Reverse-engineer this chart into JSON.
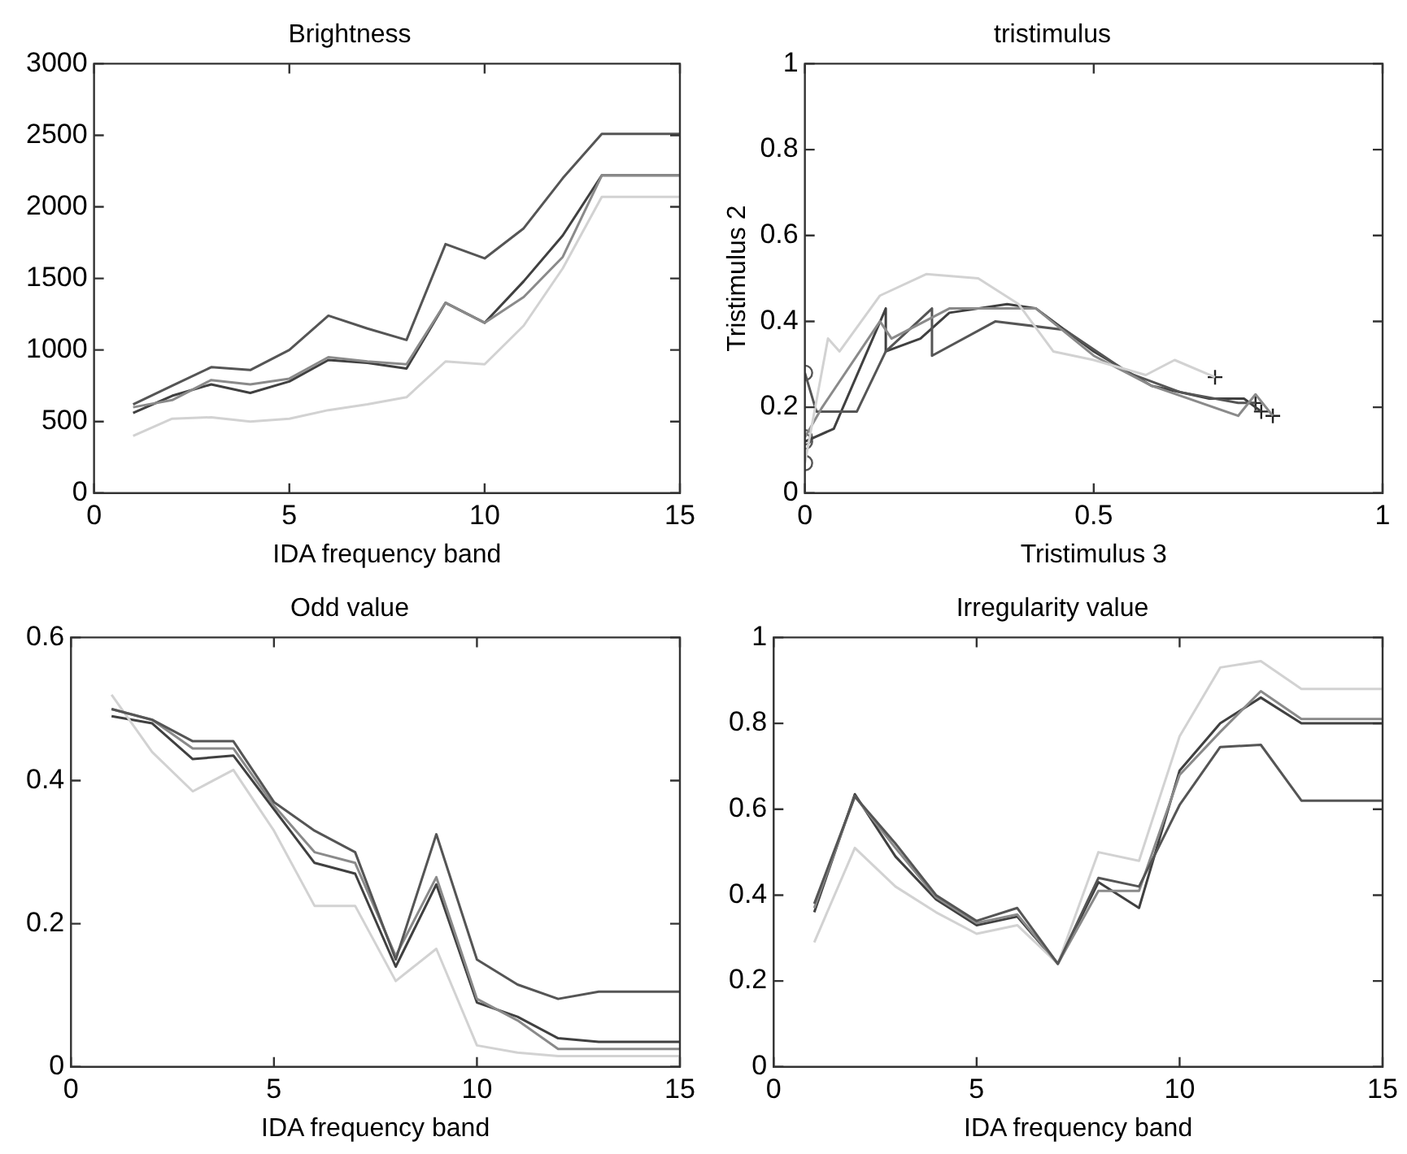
{
  "chart_data": [
    {
      "type": "line",
      "title": "Brightness",
      "xlabel": "IDA frequency band",
      "x": [
        1,
        2,
        3,
        4,
        5,
        6,
        7,
        8,
        9,
        10,
        11,
        12,
        13,
        14,
        15
      ],
      "xlim": [
        0,
        15
      ],
      "xticks": [
        0,
        5,
        10,
        15
      ],
      "ylim": [
        0,
        3000
      ],
      "yticks": [
        0,
        500,
        1000,
        1500,
        2000,
        2500,
        3000
      ],
      "grid": false,
      "legend": false,
      "line_style": "solid",
      "series": [
        {
          "color": "#555555",
          "values": [
            620,
            750,
            880,
            860,
            1000,
            1240,
            1150,
            1070,
            1740,
            1640,
            1850,
            2200,
            2510,
            2510,
            2510
          ]
        },
        {
          "color": "#8a8a8a",
          "values": [
            600,
            650,
            790,
            760,
            800,
            950,
            920,
            900,
            1330,
            1190,
            1370,
            1650,
            2220,
            2220,
            2220
          ]
        },
        {
          "color": "#d2d2d2",
          "values": [
            400,
            520,
            530,
            500,
            520,
            580,
            620,
            670,
            920,
            900,
            1170,
            1570,
            2070,
            2070,
            2070
          ]
        },
        {
          "color": "#404040",
          "values": [
            560,
            680,
            760,
            700,
            780,
            930,
            910,
            870,
            1330,
            1190,
            1480,
            1800,
            2220,
            2220,
            2220
          ]
        }
      ]
    },
    {
      "type": "line",
      "title": "tristimulus",
      "xlabel": "Tristimulus 3",
      "ylabel": "Tristimulus 2",
      "xlim": [
        0,
        1
      ],
      "xticks": [
        0,
        0.5,
        1
      ],
      "ylim": [
        0,
        1
      ],
      "yticks": [
        0,
        0.2,
        0.4,
        0.6,
        0.8,
        1
      ],
      "grid": false,
      "legend": false,
      "line_style": "solid",
      "series": [
        {
          "color": "#d2d2d2",
          "x": [
            0,
            0.04,
            0.06,
            0.13,
            0.21,
            0.3,
            0.37,
            0.43,
            0.5,
            0.59,
            0.64,
            0.71
          ],
          "values": [
            0.07,
            0.36,
            0.33,
            0.46,
            0.51,
            0.5,
            0.44,
            0.33,
            0.31,
            0.275,
            0.31,
            0.27
          ]
        },
        {
          "color": "#8a8a8a",
          "x": [
            0,
            0.03,
            0.13,
            0.15,
            0.25,
            0.4,
            0.5,
            0.6,
            0.75,
            0.78,
            0.81
          ],
          "values": [
            0.13,
            0.2,
            0.4,
            0.36,
            0.43,
            0.43,
            0.32,
            0.25,
            0.18,
            0.23,
            0.18
          ]
        },
        {
          "color": "#555555",
          "x": [
            0,
            0.02,
            0.09,
            0.14,
            0.22,
            0.22,
            0.33,
            0.45,
            0.56,
            0.65,
            0.75,
            0.78
          ],
          "values": [
            0.28,
            0.19,
            0.19,
            0.33,
            0.43,
            0.32,
            0.4,
            0.38,
            0.28,
            0.235,
            0.21,
            0.21
          ]
        },
        {
          "color": "#404040",
          "x": [
            0,
            0.05,
            0.14,
            0.14,
            0.2,
            0.25,
            0.35,
            0.4,
            0.5,
            0.6,
            0.7,
            0.76,
            0.79
          ],
          "values": [
            0.12,
            0.15,
            0.43,
            0.33,
            0.36,
            0.42,
            0.44,
            0.43,
            0.33,
            0.25,
            0.22,
            0.22,
            0.19
          ]
        },
        {
          "type": "scatter",
          "marker": "circle",
          "color": "#555555",
          "x": [
            0,
            0,
            0,
            0
          ],
          "values": [
            0.07,
            0.13,
            0.28,
            0.12
          ]
        },
        {
          "type": "scatter",
          "marker": "cross",
          "color": "#222222",
          "x": [
            0.71,
            0.81,
            0.78,
            0.79
          ],
          "values": [
            0.27,
            0.18,
            0.21,
            0.19
          ]
        }
      ]
    },
    {
      "type": "line",
      "title": "Odd value",
      "xlabel": "IDA frequency band",
      "x": [
        1,
        2,
        3,
        4,
        5,
        6,
        7,
        8,
        9,
        10,
        11,
        12,
        13,
        14,
        15
      ],
      "xlim": [
        0,
        15
      ],
      "xticks": [
        0,
        5,
        10,
        15
      ],
      "ylim": [
        0,
        0.6
      ],
      "yticks": [
        0,
        0.2,
        0.4,
        0.6
      ],
      "grid": false,
      "legend": false,
      "line_style": "solid",
      "series": [
        {
          "color": "#555555",
          "values": [
            0.5,
            0.485,
            0.455,
            0.455,
            0.37,
            0.33,
            0.3,
            0.15,
            0.325,
            0.15,
            0.115,
            0.095,
            0.105,
            0.105,
            0.105
          ]
        },
        {
          "color": "#8a8a8a",
          "values": [
            0.5,
            0.485,
            0.445,
            0.445,
            0.365,
            0.3,
            0.285,
            0.155,
            0.265,
            0.095,
            0.065,
            0.025,
            0.025,
            0.025,
            0.025
          ]
        },
        {
          "color": "#d2d2d2",
          "values": [
            0.52,
            0.44,
            0.385,
            0.415,
            0.33,
            0.225,
            0.225,
            0.12,
            0.165,
            0.03,
            0.02,
            0.015,
            0.015,
            0.015,
            0.015
          ]
        },
        {
          "color": "#404040",
          "values": [
            0.49,
            0.48,
            0.43,
            0.435,
            0.36,
            0.285,
            0.27,
            0.14,
            0.255,
            0.09,
            0.07,
            0.04,
            0.035,
            0.035,
            0.035
          ]
        }
      ]
    },
    {
      "type": "line",
      "title": "Irregularity value",
      "xlabel": "IDA frequency band",
      "x": [
        1,
        2,
        3,
        4,
        5,
        6,
        7,
        8,
        9,
        10,
        11,
        12,
        13,
        14,
        15
      ],
      "xlim": [
        0,
        15
      ],
      "xticks": [
        0,
        5,
        10,
        15
      ],
      "ylim": [
        0,
        1
      ],
      "yticks": [
        0,
        0.2,
        0.4,
        0.6,
        0.8,
        1
      ],
      "grid": false,
      "legend": false,
      "line_style": "solid",
      "series": [
        {
          "color": "#555555",
          "values": [
            0.38,
            0.63,
            0.52,
            0.4,
            0.34,
            0.37,
            0.24,
            0.44,
            0.42,
            0.61,
            0.745,
            0.75,
            0.62,
            0.62,
            0.62
          ]
        },
        {
          "color": "#8a8a8a",
          "values": [
            0.37,
            0.63,
            0.51,
            0.395,
            0.335,
            0.355,
            0.24,
            0.41,
            0.41,
            0.68,
            0.78,
            0.875,
            0.81,
            0.81,
            0.81
          ]
        },
        {
          "color": "#d2d2d2",
          "values": [
            0.29,
            0.51,
            0.42,
            0.36,
            0.31,
            0.33,
            0.24,
            0.5,
            0.48,
            0.77,
            0.93,
            0.945,
            0.88,
            0.88,
            0.88
          ]
        },
        {
          "color": "#404040",
          "values": [
            0.36,
            0.635,
            0.49,
            0.39,
            0.33,
            0.35,
            0.24,
            0.43,
            0.37,
            0.69,
            0.8,
            0.86,
            0.8,
            0.8,
            0.8
          ]
        }
      ]
    }
  ]
}
